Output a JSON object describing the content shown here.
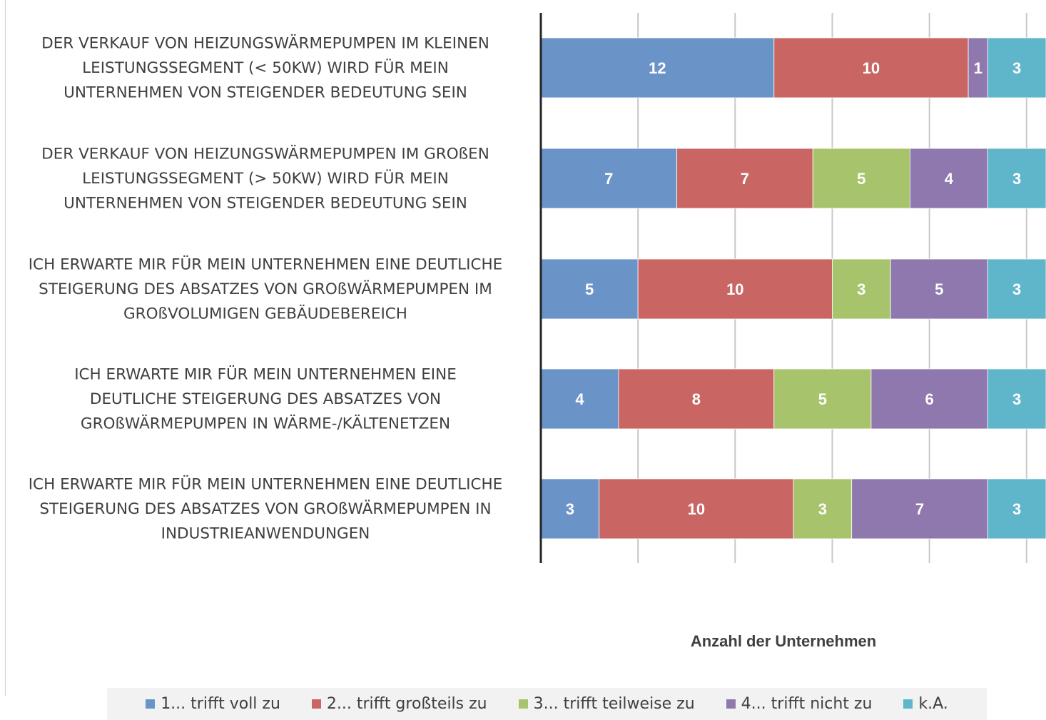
{
  "chart_data": {
    "type": "bar",
    "orientation": "horizontal",
    "stacked": true,
    "categories": [
      [
        "DER VERKAUF VON HEIZUNGSWÄRMEPUMPEN IM KLEINEN",
        "LEISTUNGSSEGMENT (< 50KW) WIRD FÜR MEIN",
        "UNTERNEHMEN VON STEIGENDER BEDEUTUNG SEIN"
      ],
      [
        "DER VERKAUF VON HEIZUNGSWÄRMEPUMPEN IM GROßEN",
        "LEISTUNGSSEGMENT (> 50KW) WIRD FÜR MEIN",
        "UNTERNEHMEN VON STEIGENDER BEDEUTUNG SEIN"
      ],
      [
        "ICH ERWARTE MIR FÜR MEIN UNTERNEHMEN EINE DEUTLICHE",
        "STEIGERUNG DES ABSATZES VON GROßWÄRMEPUMPEN IM",
        "GROßVOLUMIGEN GEBÄUDEBEREICH"
      ],
      [
        "ICH ERWARTE MIR FÜR MEIN UNTERNEHMEN EINE",
        "DEUTLICHE STEIGERUNG DES ABSATZES VON",
        "GROßWÄRMEPUMPEN IN WÄRME-/KÄLTENETZEN"
      ],
      [
        "ICH ERWARTE MIR FÜR MEIN UNTERNEHMEN EINE DEUTLICHE",
        "STEIGERUNG DES ABSATZES VON GROßWÄRMEPUMPEN IN",
        "INDUSTRIEANWENDUNGEN"
      ]
    ],
    "series": [
      {
        "name": "1... trifft voll zu",
        "color": "#6a93c7",
        "values": [
          12,
          7,
          5,
          4,
          3
        ]
      },
      {
        "name": "2... trifft großteils zu",
        "color": "#c96663",
        "values": [
          10,
          7,
          10,
          8,
          10
        ]
      },
      {
        "name": "3... trifft teilweise zu",
        "color": "#a7c46d",
        "values": [
          0,
          5,
          3,
          5,
          3
        ]
      },
      {
        "name": "4... trifft nicht zu",
        "color": "#8e78ae",
        "values": [
          1,
          4,
          5,
          6,
          7
        ]
      },
      {
        "name": "k.A.",
        "color": "#5fb5ca",
        "values": [
          3,
          3,
          3,
          3,
          3
        ]
      }
    ],
    "xlabel": "Anzahl der Unternehmen",
    "ylabel": "",
    "xlim": [
      0,
      26
    ],
    "x_gridline_step": 5,
    "x_tick_labels_visible": false,
    "grid": true,
    "legend_position": "bottom"
  }
}
